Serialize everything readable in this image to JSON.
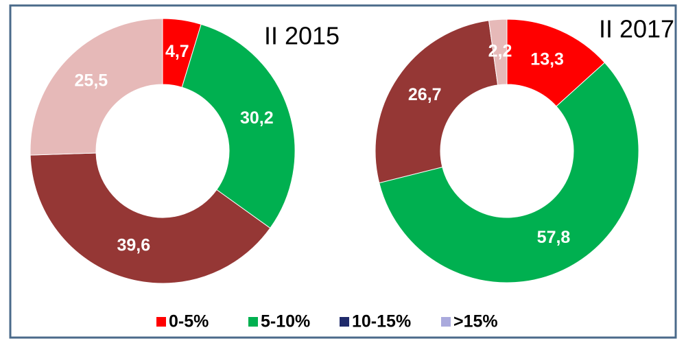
{
  "chart_data": [
    {
      "type": "donut",
      "title": "II 2015",
      "categories": [
        "0-5%",
        "5-10%",
        "10-15%",
        ">15%"
      ],
      "values": [
        4.7,
        30.2,
        39.6,
        25.5
      ],
      "value_labels": [
        "4,7",
        "30,2",
        "39,6",
        "25,5"
      ],
      "colors": [
        "#ff0000",
        "#00b050",
        "#953735",
        "#e6b9b8"
      ]
    },
    {
      "type": "donut",
      "title": "II 2017",
      "categories": [
        "0-5%",
        "5-10%",
        "10-15%",
        ">15%"
      ],
      "values": [
        13.3,
        57.8,
        26.7,
        2.2
      ],
      "value_labels": [
        "13,3",
        "57,8",
        "26,7",
        "2,2"
      ],
      "colors": [
        "#ff0000",
        "#00b050",
        "#953735",
        "#e6b9b8"
      ]
    }
  ],
  "legend": {
    "colors": [
      "#ff0000",
      "#00b050",
      "#1f2a6b",
      "#aaaadd"
    ]
  }
}
